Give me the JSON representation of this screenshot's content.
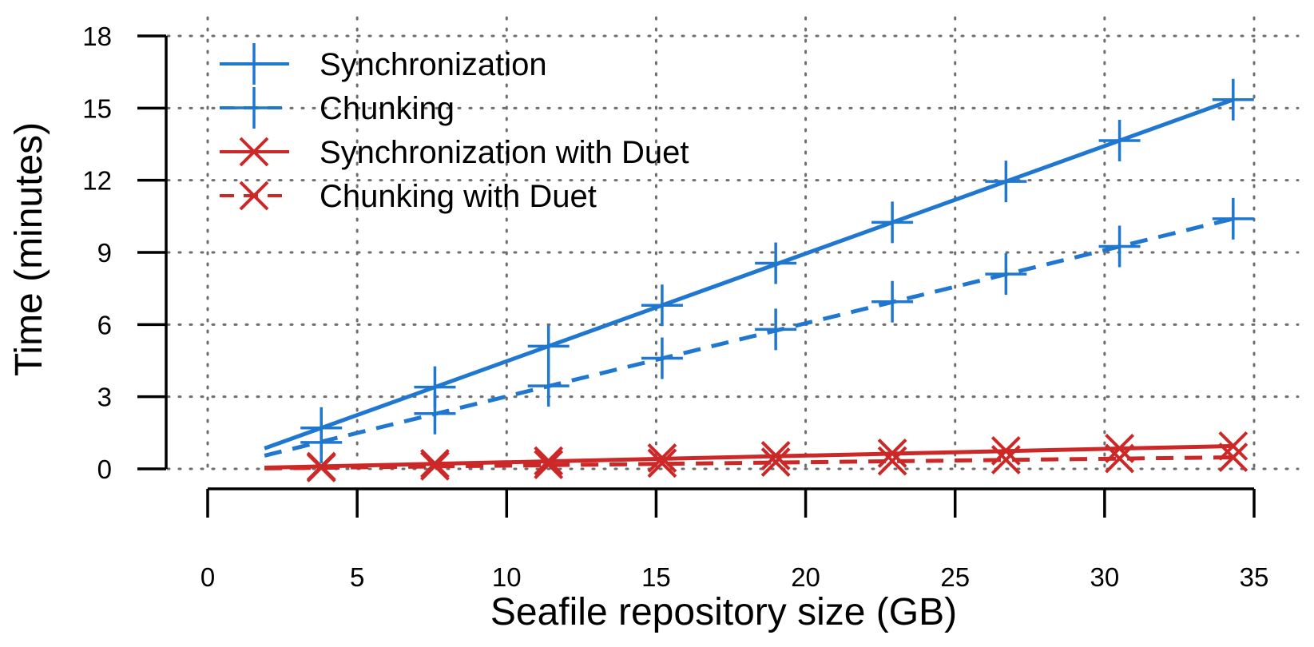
{
  "chart_data": {
    "type": "line",
    "title": "",
    "xlabel": "Seafile repository size (GB)",
    "ylabel": "Time (minutes)",
    "xlim": [
      0,
      35
    ],
    "ylim": [
      0,
      18
    ],
    "xticks": [
      0,
      5,
      10,
      15,
      20,
      25,
      30,
      35
    ],
    "yticks": [
      0,
      3,
      6,
      9,
      12,
      15,
      18
    ],
    "grid": true,
    "legend": "top-left",
    "series": [
      {
        "name": "Synchronization",
        "color": "#1f77d0",
        "line": "solid",
        "marker": "plus",
        "markers": [
          [
            3.8,
            1.7
          ],
          [
            7.6,
            3.4
          ],
          [
            11.4,
            5.1
          ],
          [
            15.2,
            6.8
          ],
          [
            19.0,
            8.55
          ],
          [
            22.9,
            10.25
          ],
          [
            26.7,
            11.95
          ],
          [
            30.5,
            13.65
          ],
          [
            34.3,
            15.35
          ]
        ],
        "line_points": [
          [
            1.9,
            0.85
          ],
          [
            34.3,
            15.35
          ]
        ]
      },
      {
        "name": "Chunking",
        "color": "#1f77d0",
        "line": "dashed",
        "marker": "plus",
        "markers": [
          [
            3.8,
            1.1
          ],
          [
            7.6,
            2.3
          ],
          [
            11.4,
            3.45
          ],
          [
            15.2,
            4.6
          ],
          [
            19.0,
            5.8
          ],
          [
            22.9,
            6.95
          ],
          [
            26.7,
            8.1
          ],
          [
            30.5,
            9.25
          ],
          [
            34.3,
            10.4
          ]
        ],
        "line_points": [
          [
            1.9,
            0.55
          ],
          [
            34.3,
            10.4
          ]
        ]
      },
      {
        "name": "Synchronization with Duet",
        "color": "#cc2828",
        "line": "solid",
        "marker": "x",
        "markers": [
          [
            3.8,
            0.1
          ],
          [
            7.6,
            0.22
          ],
          [
            11.4,
            0.33
          ],
          [
            15.2,
            0.45
          ],
          [
            19.0,
            0.55
          ],
          [
            22.9,
            0.65
          ],
          [
            26.7,
            0.75
          ],
          [
            30.5,
            0.85
          ],
          [
            34.3,
            0.95
          ]
        ],
        "line_points": [
          [
            1.9,
            0.05
          ],
          [
            34.3,
            0.95
          ]
        ]
      },
      {
        "name": "Chunking with Duet",
        "color": "#cc2828",
        "line": "dashed",
        "marker": "x",
        "markers": [
          [
            3.8,
            0.05
          ],
          [
            7.6,
            0.12
          ],
          [
            11.4,
            0.18
          ],
          [
            15.2,
            0.24
          ],
          [
            19.0,
            0.28
          ],
          [
            22.9,
            0.33
          ],
          [
            26.7,
            0.38
          ],
          [
            30.5,
            0.43
          ],
          [
            34.3,
            0.48
          ]
        ],
        "line_points": [
          [
            1.9,
            0.02
          ],
          [
            34.3,
            0.48
          ]
        ]
      }
    ]
  }
}
